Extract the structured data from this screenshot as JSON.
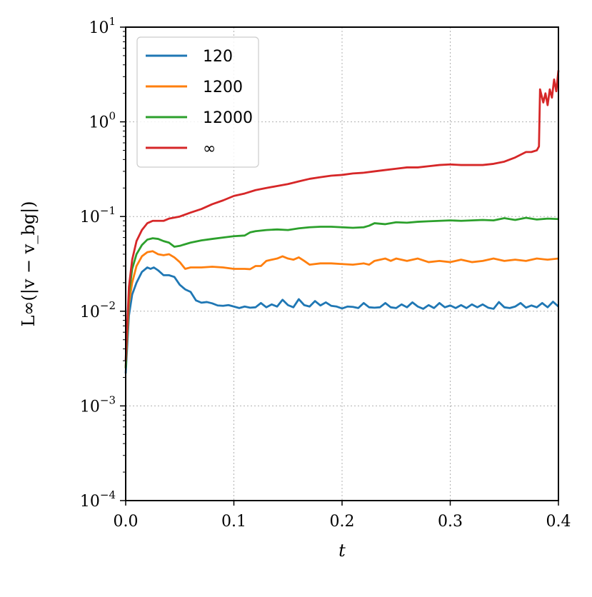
{
  "chart_data": {
    "type": "line",
    "xlabel": "t",
    "ylabel": "L∞(|v − v_bg|)",
    "xlim": [
      0.0,
      0.4
    ],
    "ylim": [
      0.0001,
      10
    ],
    "yscale": "log",
    "grid": true,
    "legend_position": "top-left",
    "x_ticks": [
      "0.0",
      "0.1",
      "0.2",
      "0.3",
      "0.4"
    ],
    "y_ticks": [
      {
        "base": "10",
        "exp": "1"
      },
      {
        "base": "10",
        "exp": "0"
      },
      {
        "base": "10",
        "exp": "−1"
      },
      {
        "base": "10",
        "exp": "−2"
      },
      {
        "base": "10",
        "exp": "−3"
      },
      {
        "base": "10",
        "exp": "−4"
      }
    ],
    "series": [
      {
        "name": "120",
        "color": "#1f77b4",
        "points": [
          [
            0,
            0.0022
          ],
          [
            0.003,
            0.009
          ],
          [
            0.006,
            0.015
          ],
          [
            0.01,
            0.02
          ],
          [
            0.015,
            0.026
          ],
          [
            0.02,
            0.029
          ],
          [
            0.023,
            0.028
          ],
          [
            0.026,
            0.029
          ],
          [
            0.03,
            0.027
          ],
          [
            0.035,
            0.024
          ],
          [
            0.04,
            0.024
          ],
          [
            0.045,
            0.023
          ],
          [
            0.05,
            0.019
          ],
          [
            0.055,
            0.017
          ],
          [
            0.06,
            0.016
          ],
          [
            0.065,
            0.013
          ],
          [
            0.07,
            0.0123
          ],
          [
            0.075,
            0.0125
          ],
          [
            0.08,
            0.0121
          ],
          [
            0.085,
            0.0115
          ],
          [
            0.09,
            0.0114
          ],
          [
            0.095,
            0.0116
          ],
          [
            0.1,
            0.0112
          ],
          [
            0.105,
            0.0108
          ],
          [
            0.11,
            0.0112
          ],
          [
            0.115,
            0.0109
          ],
          [
            0.12,
            0.011
          ],
          [
            0.125,
            0.0122
          ],
          [
            0.13,
            0.011
          ],
          [
            0.135,
            0.0118
          ],
          [
            0.14,
            0.0112
          ],
          [
            0.145,
            0.0132
          ],
          [
            0.15,
            0.0116
          ],
          [
            0.155,
            0.011
          ],
          [
            0.16,
            0.0134
          ],
          [
            0.165,
            0.0116
          ],
          [
            0.17,
            0.0112
          ],
          [
            0.175,
            0.0128
          ],
          [
            0.18,
            0.0115
          ],
          [
            0.185,
            0.0124
          ],
          [
            0.19,
            0.0114
          ],
          [
            0.195,
            0.0112
          ],
          [
            0.2,
            0.0107
          ],
          [
            0.205,
            0.0112
          ],
          [
            0.21,
            0.0111
          ],
          [
            0.215,
            0.0108
          ],
          [
            0.22,
            0.0122
          ],
          [
            0.225,
            0.011
          ],
          [
            0.23,
            0.0109
          ],
          [
            0.235,
            0.011
          ],
          [
            0.24,
            0.0122
          ],
          [
            0.245,
            0.011
          ],
          [
            0.25,
            0.0108
          ],
          [
            0.255,
            0.0118
          ],
          [
            0.26,
            0.011
          ],
          [
            0.265,
            0.0124
          ],
          [
            0.27,
            0.0112
          ],
          [
            0.275,
            0.0106
          ],
          [
            0.28,
            0.0116
          ],
          [
            0.285,
            0.0108
          ],
          [
            0.29,
            0.0122
          ],
          [
            0.295,
            0.011
          ],
          [
            0.3,
            0.0115
          ],
          [
            0.305,
            0.0108
          ],
          [
            0.31,
            0.0116
          ],
          [
            0.315,
            0.0108
          ],
          [
            0.32,
            0.0118
          ],
          [
            0.325,
            0.011
          ],
          [
            0.33,
            0.0118
          ],
          [
            0.335,
            0.0109
          ],
          [
            0.34,
            0.0106
          ],
          [
            0.345,
            0.0125
          ],
          [
            0.35,
            0.011
          ],
          [
            0.355,
            0.0108
          ],
          [
            0.36,
            0.0112
          ],
          [
            0.365,
            0.0122
          ],
          [
            0.37,
            0.0109
          ],
          [
            0.375,
            0.0115
          ],
          [
            0.38,
            0.011
          ],
          [
            0.385,
            0.0122
          ],
          [
            0.39,
            0.011
          ],
          [
            0.395,
            0.0126
          ],
          [
            0.4,
            0.0112
          ]
        ]
      },
      {
        "name": "1200",
        "color": "#ff7f0e",
        "points": [
          [
            0,
            0.0025
          ],
          [
            0.003,
            0.012
          ],
          [
            0.006,
            0.02
          ],
          [
            0.01,
            0.03
          ],
          [
            0.015,
            0.038
          ],
          [
            0.02,
            0.042
          ],
          [
            0.025,
            0.043
          ],
          [
            0.03,
            0.04
          ],
          [
            0.035,
            0.039
          ],
          [
            0.04,
            0.04
          ],
          [
            0.045,
            0.037
          ],
          [
            0.05,
            0.033
          ],
          [
            0.055,
            0.028
          ],
          [
            0.06,
            0.029
          ],
          [
            0.07,
            0.029
          ],
          [
            0.08,
            0.0295
          ],
          [
            0.09,
            0.029
          ],
          [
            0.1,
            0.028
          ],
          [
            0.11,
            0.028
          ],
          [
            0.115,
            0.0278
          ],
          [
            0.12,
            0.03
          ],
          [
            0.125,
            0.03
          ],
          [
            0.13,
            0.034
          ],
          [
            0.135,
            0.035
          ],
          [
            0.14,
            0.036
          ],
          [
            0.145,
            0.038
          ],
          [
            0.15,
            0.036
          ],
          [
            0.155,
            0.035
          ],
          [
            0.16,
            0.037
          ],
          [
            0.165,
            0.034
          ],
          [
            0.17,
            0.031
          ],
          [
            0.18,
            0.032
          ],
          [
            0.19,
            0.032
          ],
          [
            0.2,
            0.0315
          ],
          [
            0.21,
            0.031
          ],
          [
            0.22,
            0.032
          ],
          [
            0.225,
            0.031
          ],
          [
            0.23,
            0.034
          ],
          [
            0.24,
            0.036
          ],
          [
            0.245,
            0.034
          ],
          [
            0.25,
            0.036
          ],
          [
            0.26,
            0.034
          ],
          [
            0.27,
            0.036
          ],
          [
            0.28,
            0.033
          ],
          [
            0.29,
            0.034
          ],
          [
            0.3,
            0.033
          ],
          [
            0.31,
            0.035
          ],
          [
            0.32,
            0.033
          ],
          [
            0.33,
            0.034
          ],
          [
            0.34,
            0.036
          ],
          [
            0.35,
            0.034
          ],
          [
            0.36,
            0.035
          ],
          [
            0.37,
            0.034
          ],
          [
            0.38,
            0.036
          ],
          [
            0.39,
            0.035
          ],
          [
            0.4,
            0.036
          ]
        ]
      },
      {
        "name": "12000",
        "color": "#2ca02c",
        "points": [
          [
            0,
            0.0025
          ],
          [
            0.003,
            0.015
          ],
          [
            0.006,
            0.028
          ],
          [
            0.01,
            0.04
          ],
          [
            0.015,
            0.05
          ],
          [
            0.02,
            0.057
          ],
          [
            0.025,
            0.059
          ],
          [
            0.03,
            0.058
          ],
          [
            0.035,
            0.055
          ],
          [
            0.04,
            0.053
          ],
          [
            0.045,
            0.048
          ],
          [
            0.05,
            0.049
          ],
          [
            0.055,
            0.051
          ],
          [
            0.06,
            0.053
          ],
          [
            0.07,
            0.056
          ],
          [
            0.08,
            0.058
          ],
          [
            0.09,
            0.06
          ],
          [
            0.1,
            0.062
          ],
          [
            0.11,
            0.063
          ],
          [
            0.115,
            0.068
          ],
          [
            0.12,
            0.07
          ],
          [
            0.13,
            0.072
          ],
          [
            0.14,
            0.073
          ],
          [
            0.15,
            0.072
          ],
          [
            0.16,
            0.075
          ],
          [
            0.17,
            0.077
          ],
          [
            0.18,
            0.078
          ],
          [
            0.19,
            0.078
          ],
          [
            0.2,
            0.077
          ],
          [
            0.21,
            0.076
          ],
          [
            0.22,
            0.077
          ],
          [
            0.225,
            0.08
          ],
          [
            0.23,
            0.085
          ],
          [
            0.24,
            0.083
          ],
          [
            0.25,
            0.087
          ],
          [
            0.26,
            0.086
          ],
          [
            0.27,
            0.088
          ],
          [
            0.28,
            0.089
          ],
          [
            0.29,
            0.09
          ],
          [
            0.3,
            0.091
          ],
          [
            0.31,
            0.09
          ],
          [
            0.32,
            0.091
          ],
          [
            0.33,
            0.092
          ],
          [
            0.34,
            0.091
          ],
          [
            0.35,
            0.096
          ],
          [
            0.36,
            0.092
          ],
          [
            0.37,
            0.097
          ],
          [
            0.38,
            0.093
          ],
          [
            0.39,
            0.095
          ],
          [
            0.4,
            0.094
          ]
        ]
      },
      {
        "name": "∞",
        "color": "#d62728",
        "points": [
          [
            0,
            0.003
          ],
          [
            0.003,
            0.018
          ],
          [
            0.006,
            0.035
          ],
          [
            0.01,
            0.055
          ],
          [
            0.015,
            0.072
          ],
          [
            0.02,
            0.085
          ],
          [
            0.025,
            0.09
          ],
          [
            0.03,
            0.09
          ],
          [
            0.035,
            0.09
          ],
          [
            0.04,
            0.095
          ],
          [
            0.05,
            0.1
          ],
          [
            0.06,
            0.11
          ],
          [
            0.07,
            0.12
          ],
          [
            0.08,
            0.135
          ],
          [
            0.09,
            0.148
          ],
          [
            0.1,
            0.165
          ],
          [
            0.11,
            0.175
          ],
          [
            0.12,
            0.19
          ],
          [
            0.13,
            0.2
          ],
          [
            0.14,
            0.21
          ],
          [
            0.15,
            0.22
          ],
          [
            0.16,
            0.235
          ],
          [
            0.17,
            0.25
          ],
          [
            0.18,
            0.26
          ],
          [
            0.19,
            0.27
          ],
          [
            0.2,
            0.275
          ],
          [
            0.21,
            0.285
          ],
          [
            0.22,
            0.29
          ],
          [
            0.23,
            0.3
          ],
          [
            0.24,
            0.31
          ],
          [
            0.25,
            0.32
          ],
          [
            0.26,
            0.33
          ],
          [
            0.27,
            0.33
          ],
          [
            0.28,
            0.34
          ],
          [
            0.29,
            0.35
          ],
          [
            0.3,
            0.355
          ],
          [
            0.31,
            0.35
          ],
          [
            0.32,
            0.35
          ],
          [
            0.33,
            0.35
          ],
          [
            0.34,
            0.36
          ],
          [
            0.35,
            0.38
          ],
          [
            0.36,
            0.42
          ],
          [
            0.37,
            0.48
          ],
          [
            0.375,
            0.48
          ],
          [
            0.38,
            0.5
          ],
          [
            0.382,
            0.55
          ],
          [
            0.383,
            2.2
          ],
          [
            0.386,
            1.6
          ],
          [
            0.388,
            2.0
          ],
          [
            0.39,
            1.5
          ],
          [
            0.392,
            2.2
          ],
          [
            0.394,
            1.8
          ],
          [
            0.396,
            2.8
          ],
          [
            0.398,
            2.1
          ],
          [
            0.4,
            3.5
          ]
        ]
      }
    ]
  }
}
